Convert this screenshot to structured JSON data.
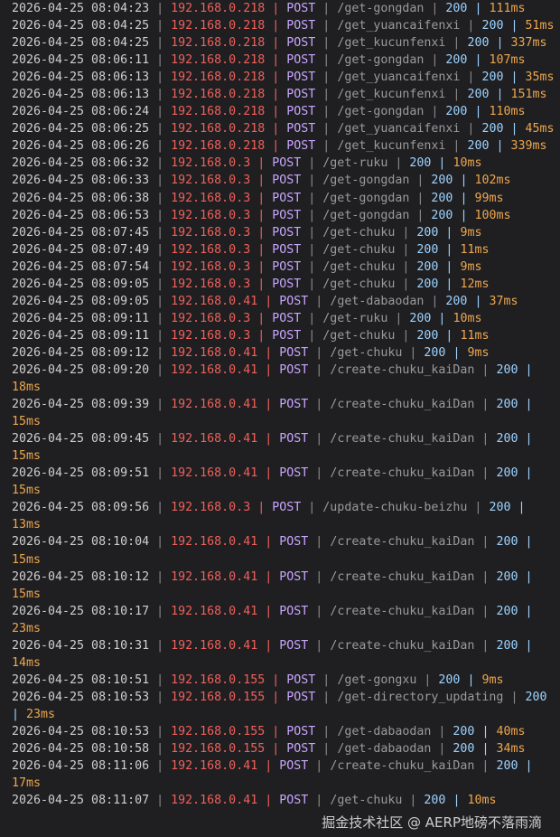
{
  "log": [
    [
      "2026-04-25 08:04:23",
      "192.168.0.218",
      "POST",
      "/get-gongdan",
      "200",
      "111ms"
    ],
    [
      "2026-04-25 08:04:25",
      "192.168.0.218",
      "POST",
      "/get_yuancaifenxi",
      "200",
      "51ms"
    ],
    [
      "2026-04-25 08:04:25",
      "192.168.0.218",
      "POST",
      "/get_kucunfenxi",
      "200",
      "337ms"
    ],
    [
      "2026-04-25 08:06:11",
      "192.168.0.218",
      "POST",
      "/get-gongdan",
      "200",
      "107ms"
    ],
    [
      "2026-04-25 08:06:13",
      "192.168.0.218",
      "POST",
      "/get_yuancaifenxi",
      "200",
      "35ms"
    ],
    [
      "2026-04-25 08:06:13",
      "192.168.0.218",
      "POST",
      "/get_kucunfenxi",
      "200",
      "151ms"
    ],
    [
      "2026-04-25 08:06:24",
      "192.168.0.218",
      "POST",
      "/get-gongdan",
      "200",
      "110ms"
    ],
    [
      "2026-04-25 08:06:25",
      "192.168.0.218",
      "POST",
      "/get_yuancaifenxi",
      "200",
      "45ms"
    ],
    [
      "2026-04-25 08:06:26",
      "192.168.0.218",
      "POST",
      "/get_kucunfenxi",
      "200",
      "339ms"
    ],
    [
      "2026-04-25 08:06:32",
      "192.168.0.3",
      "POST",
      "/get-ruku",
      "200",
      "10ms"
    ],
    [
      "2026-04-25 08:06:33",
      "192.168.0.3",
      "POST",
      "/get-gongdan",
      "200",
      "102ms"
    ],
    [
      "2026-04-25 08:06:38",
      "192.168.0.3",
      "POST",
      "/get-gongdan",
      "200",
      "99ms"
    ],
    [
      "2026-04-25 08:06:53",
      "192.168.0.3",
      "POST",
      "/get-gongdan",
      "200",
      "100ms"
    ],
    [
      "2026-04-25 08:07:45",
      "192.168.0.3",
      "POST",
      "/get-chuku",
      "200",
      "9ms"
    ],
    [
      "2026-04-25 08:07:49",
      "192.168.0.3",
      "POST",
      "/get-chuku",
      "200",
      "11ms"
    ],
    [
      "2026-04-25 08:07:54",
      "192.168.0.3",
      "POST",
      "/get-chuku",
      "200",
      "9ms"
    ],
    [
      "2026-04-25 08:09:05",
      "192.168.0.3",
      "POST",
      "/get-chuku",
      "200",
      "12ms"
    ],
    [
      "2026-04-25 08:09:05",
      "192.168.0.41",
      "POST",
      "/get-dabaodan",
      "200",
      "37ms"
    ],
    [
      "2026-04-25 08:09:11",
      "192.168.0.3",
      "POST",
      "/get-ruku",
      "200",
      "10ms"
    ],
    [
      "2026-04-25 08:09:11",
      "192.168.0.3",
      "POST",
      "/get-chuku",
      "200",
      "11ms"
    ],
    [
      "2026-04-25 08:09:12",
      "192.168.0.41",
      "POST",
      "/get-chuku",
      "200",
      "9ms"
    ],
    [
      "2026-04-25 08:09:20",
      "192.168.0.41",
      "POST",
      "/create-chuku_kaiDan",
      "200",
      "18ms"
    ],
    [
      "2026-04-25 08:09:39",
      "192.168.0.41",
      "POST",
      "/create-chuku_kaiDan",
      "200",
      "15ms"
    ],
    [
      "2026-04-25 08:09:45",
      "192.168.0.41",
      "POST",
      "/create-chuku_kaiDan",
      "200",
      "15ms"
    ],
    [
      "2026-04-25 08:09:51",
      "192.168.0.41",
      "POST",
      "/create-chuku_kaiDan",
      "200",
      "15ms"
    ],
    [
      "2026-04-25 08:09:56",
      "192.168.0.3",
      "POST",
      "/update-chuku-beizhu",
      "200",
      "13ms"
    ],
    [
      "2026-04-25 08:10:04",
      "192.168.0.41",
      "POST",
      "/create-chuku_kaiDan",
      "200",
      "15ms"
    ],
    [
      "2026-04-25 08:10:12",
      "192.168.0.41",
      "POST",
      "/create-chuku_kaiDan",
      "200",
      "15ms"
    ],
    [
      "2026-04-25 08:10:17",
      "192.168.0.41",
      "POST",
      "/create-chuku_kaiDan",
      "200",
      "23ms"
    ],
    [
      "2026-04-25 08:10:31",
      "192.168.0.41",
      "POST",
      "/create-chuku_kaiDan",
      "200",
      "14ms"
    ],
    [
      "2026-04-25 08:10:51",
      "192.168.0.155",
      "POST",
      "/get-gongxu",
      "200",
      "9ms"
    ],
    [
      "2026-04-25 08:10:53",
      "192.168.0.155",
      "POST",
      "/get-directory_updating",
      "200",
      "23ms"
    ],
    [
      "2026-04-25 08:10:53",
      "192.168.0.155",
      "POST",
      "/get-dabaodan",
      "200",
      "40ms"
    ],
    [
      "2026-04-25 08:10:58",
      "192.168.0.155",
      "POST",
      "/get-dabaodan",
      "200",
      "34ms"
    ],
    [
      "2026-04-25 08:11:06",
      "192.168.0.41",
      "POST",
      "/create-chuku_kaiDan",
      "200",
      "17ms"
    ],
    [
      "2026-04-25 08:11:07",
      "192.168.0.41",
      "POST",
      "/get-chuku",
      "200",
      "10ms"
    ]
  ],
  "watermark": "掘金技术社区 @ AERP地磅不落雨滴",
  "colors": {
    "background": "#1f1f22",
    "ip": "#f0605a",
    "method": "#c9a6ff",
    "status": "#9cd3ff",
    "duration": "#eea64c"
  }
}
